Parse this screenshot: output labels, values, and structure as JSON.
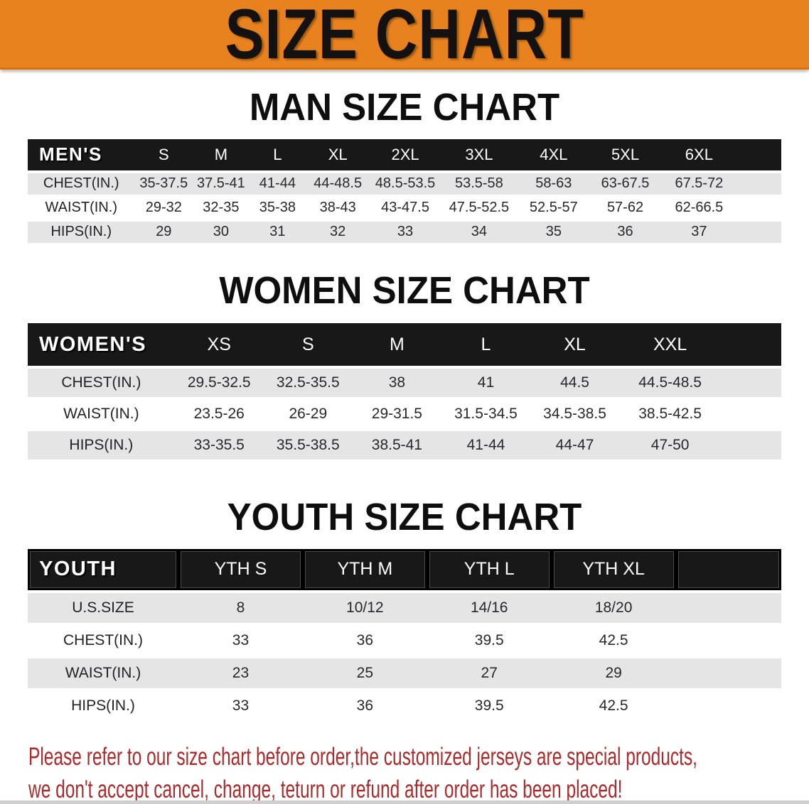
{
  "banner": {
    "title": "SIZE CHART",
    "bg_color": "#E8821E",
    "text_color": "#141210"
  },
  "sections": [
    {
      "heading": "MAN SIZE CHART",
      "label": "MEN'S",
      "sizes": [
        "S",
        "M",
        "L",
        "XL",
        "2XL",
        "3XL",
        "4XL",
        "5XL",
        "6XL"
      ],
      "rows": [
        {
          "label": "CHEST(IN.)",
          "values": [
            "35-37.5",
            "37.5-41",
            "41-44",
            "44-48.5",
            "48.5-53.5",
            "53.5-58",
            "58-63",
            "63-67.5",
            "67.5-72"
          ]
        },
        {
          "label": "WAIST(IN.)",
          "values": [
            "29-32",
            "32-35",
            "35-38",
            "38-43",
            "43-47.5",
            "47.5-52.5",
            "52.5-57",
            "57-62",
            "62-66.5"
          ]
        },
        {
          "label": "HIPS(IN.)",
          "values": [
            "29",
            "30",
            "31",
            "32",
            "33",
            "34",
            "35",
            "36",
            "37"
          ]
        }
      ]
    },
    {
      "heading": "WOMEN SIZE CHART",
      "label": "WOMEN'S",
      "sizes": [
        "XS",
        "S",
        "M",
        "L",
        "XL",
        "XXL"
      ],
      "rows": [
        {
          "label": "CHEST(IN.)",
          "values": [
            "29.5-32.5",
            "32.5-35.5",
            "38",
            "41",
            "44.5",
            "44.5-48.5"
          ]
        },
        {
          "label": "WAIST(IN.)",
          "values": [
            "23.5-26",
            "26-29",
            "29-31.5",
            "31.5-34.5",
            "34.5-38.5",
            "38.5-42.5"
          ]
        },
        {
          "label": "HIPS(IN.)",
          "values": [
            "33-35.5",
            "35.5-38.5",
            "38.5-41",
            "41-44",
            "44-47",
            "47-50"
          ]
        }
      ]
    },
    {
      "heading": "YOUTH SIZE CHART",
      "label": "YOUTH",
      "sizes": [
        "YTH S",
        "YTH M",
        "YTH L",
        "YTH XL"
      ],
      "rows": [
        {
          "label": "U.S.SIZE",
          "values": [
            "8",
            "10/12",
            "14/16",
            "18/20"
          ]
        },
        {
          "label": "CHEST(IN.)",
          "values": [
            "33",
            "36",
            "39.5",
            "42.5"
          ]
        },
        {
          "label": "WAIST(IN.)",
          "values": [
            "23",
            "25",
            "27",
            "29"
          ]
        },
        {
          "label": "HIPS(IN.)",
          "values": [
            "33",
            "36",
            "39.5",
            "42.5"
          ]
        }
      ]
    }
  ],
  "footer": {
    "line1": "Please refer to our size chart before order,the customized jerseys are special products,",
    "line2": "we don't accept cancel, change, teturn or refund after order has been placed!",
    "text_color": "#AC2A2C"
  }
}
